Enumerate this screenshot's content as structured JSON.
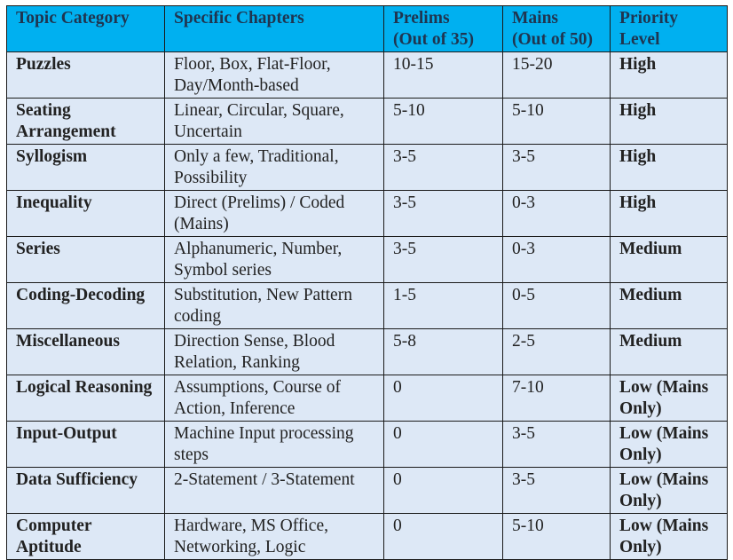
{
  "table": {
    "headers": [
      "Topic Category",
      "Specific Chapters",
      "Prelims (Out of 35)",
      "Mains (Out of 50)",
      "Priority Level"
    ],
    "header_lines": [
      [
        "Topic Category"
      ],
      [
        "Specific Chapters"
      ],
      [
        "Prelims",
        "(Out of 35)"
      ],
      [
        "Mains",
        "(Out of 50)"
      ],
      [
        "Priority",
        "Level"
      ]
    ],
    "rows": [
      [
        "Puzzles",
        "Floor, Box, Flat-Floor, Day/Month-based",
        "10-15",
        "15-20",
        "High"
      ],
      [
        "Seating Arrangement",
        "Linear, Circular, Square, Uncertain",
        "5-10",
        "5-10",
        "High"
      ],
      [
        "Syllogism",
        "Only a few, Traditional, Possibility",
        "3-5",
        "3-5",
        "High"
      ],
      [
        "Inequality",
        "Direct (Prelims) / Coded (Mains)",
        "3-5",
        "0-3",
        "High"
      ],
      [
        "Series",
        "Alphanumeric, Number, Symbol series",
        "3-5",
        "0-3",
        "Medium"
      ],
      [
        "Coding-Decoding",
        "Substitution, New Pattern coding",
        "1-5",
        "0-5",
        "Medium"
      ],
      [
        "Miscellaneous",
        "Direction Sense, Blood Relation, Ranking",
        "5-8",
        "2-5",
        "Medium"
      ],
      [
        "Logical Reasoning",
        "Assumptions, Course of Action, Inference",
        "0",
        "7-10",
        "Low (Mains Only)"
      ],
      [
        "Input-Output",
        "Machine Input processing steps",
        "0",
        "3-5",
        "Low (Mains Only)"
      ],
      [
        "Data Sufficiency",
        "2-Statement / 3-Statement",
        "0",
        "3-5",
        "Low (Mains Only)"
      ],
      [
        "Computer Aptitude",
        "Hardware, MS Office, Networking, Logic",
        "0",
        "5-10",
        "Low (Mains Only)"
      ]
    ]
  },
  "colors": {
    "header_bg": "#00b0f0",
    "row_bg": "#dde8f6",
    "border": "#1a1a1a"
  }
}
